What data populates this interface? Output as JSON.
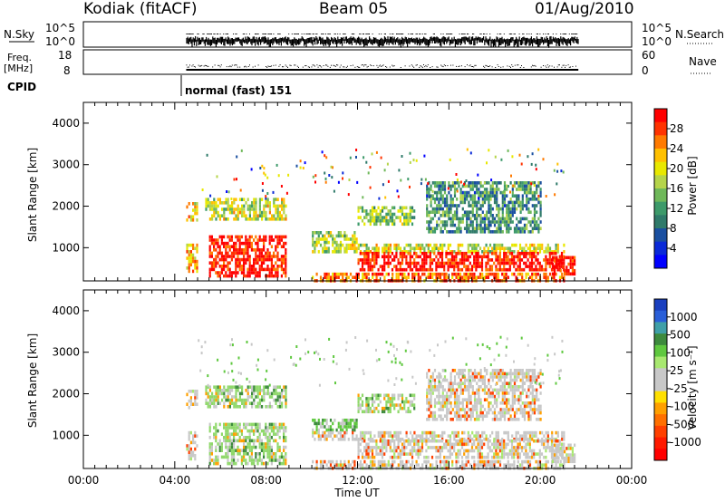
{
  "header": {
    "station": "Kodiak (fitACF)",
    "beam": "Beam 05",
    "date": "01/Aug/2010"
  },
  "panels": {
    "nsky": {
      "label": "N.Sky",
      "ticks": [
        "10^5",
        "10^0"
      ],
      "right_label": "N.Search",
      "right_ticks": [
        "10^5",
        "10^0"
      ]
    },
    "freq": {
      "label_line1": "Freq.",
      "label_line2": "[MHz]",
      "ticks": [
        "18",
        "8"
      ],
      "right_label": "Nave",
      "right_ticks": [
        "60",
        "0"
      ]
    },
    "cpid": {
      "label": "CPID",
      "mode": "normal (fast) 151"
    }
  },
  "x_axis": {
    "label": "Time UT",
    "ticks": [
      "00:00",
      "04:00",
      "08:00",
      "12:00",
      "16:00",
      "20:00",
      "00:00"
    ]
  },
  "power_colorbar": {
    "label": "Power [dB]",
    "ticks": [
      "28",
      "24",
      "20",
      "16",
      "12",
      "8",
      "4"
    ],
    "colors": [
      "#ff0000",
      "#ff3300",
      "#ff7a00",
      "#ffc000",
      "#e8e800",
      "#b5d44a",
      "#6fb85a",
      "#3d9a6a",
      "#2f7a6a",
      "#1a4fa0",
      "#0a2ad8",
      "#0000ff"
    ]
  },
  "velocity_colorbar": {
    "label": "Velocity [m s⁻¹]",
    "ticks": [
      "1000",
      "500",
      "100",
      "25",
      "-25",
      "-100",
      "-500",
      "-1000"
    ],
    "colors": [
      "#1a3fbf",
      "#2a5fd8",
      "#3f9fa8",
      "#3d8a3d",
      "#5fc83f",
      "#a8e870",
      "#c8c8c8",
      "#c8c8c8",
      "#ffe000",
      "#ffa000",
      "#ff7000",
      "#ff4000",
      "#ff1a00",
      "#ff0000"
    ]
  },
  "chart_data": [
    {
      "type": "heatmap",
      "title": "",
      "xlabel": "",
      "ylabel": "Slant Range [km]",
      "xlim": [
        "00:00",
        "00:00"
      ],
      "ylim": [
        200,
        4500
      ],
      "yticks": [
        "4000",
        "3000",
        "2000",
        "1000"
      ],
      "colorbar": "Power [dB]",
      "data_coverage": [
        "04:30",
        "21:40"
      ],
      "echo_regions": [
        {
          "t_start": "04:30",
          "t_end": "05:00",
          "r_low": 1700,
          "r_high": 2100,
          "value": 20
        },
        {
          "t_start": "04:30",
          "t_end": "05:00",
          "r_low": 450,
          "r_high": 1100,
          "value": 22
        },
        {
          "t_start": "05:20",
          "t_end": "08:50",
          "r_low": 1700,
          "r_high": 2200,
          "value": 18
        },
        {
          "t_start": "05:30",
          "t_end": "08:50",
          "r_low": 350,
          "r_high": 1300,
          "value": 28
        },
        {
          "t_start": "10:00",
          "t_end": "12:00",
          "r_low": 1100,
          "r_high": 1400,
          "value": 16
        },
        {
          "t_start": "10:00",
          "t_end": "21:00",
          "r_low": 900,
          "r_high": 1100,
          "value": 18
        },
        {
          "t_start": "12:00",
          "t_end": "21:00",
          "r_low": 450,
          "r_high": 900,
          "value": 28
        },
        {
          "t_start": "10:00",
          "t_end": "21:00",
          "r_low": 200,
          "r_high": 400,
          "value": 24
        },
        {
          "t_start": "12:00",
          "t_end": "14:30",
          "r_low": 1600,
          "r_high": 2000,
          "value": 16
        },
        {
          "t_start": "15:00",
          "t_end": "20:00",
          "r_low": 1400,
          "r_high": 2600,
          "value": 12
        },
        {
          "t_start": "20:30",
          "t_end": "21:30",
          "r_low": 350,
          "r_high": 800,
          "value": 28
        }
      ]
    },
    {
      "type": "heatmap",
      "title": "",
      "xlabel": "Time UT",
      "ylabel": "Slant Range [km]",
      "xlim": [
        "00:00",
        "00:00"
      ],
      "ylim": [
        200,
        4500
      ],
      "yticks": [
        "4000",
        "3000",
        "2000",
        "1000"
      ],
      "colorbar": "Velocity [m s⁻¹]",
      "data_coverage": [
        "04:30",
        "21:40"
      ],
      "echo_regions": [
        {
          "t_start": "04:30",
          "t_end": "05:00",
          "r_low": 1700,
          "r_high": 2100,
          "value": 0
        },
        {
          "t_start": "04:30",
          "t_end": "05:00",
          "r_low": 450,
          "r_high": 1100,
          "value": 0
        },
        {
          "t_start": "05:20",
          "t_end": "08:50",
          "r_low": 1700,
          "r_high": 2200,
          "value": 100
        },
        {
          "t_start": "05:30",
          "t_end": "08:50",
          "r_low": 350,
          "r_high": 1300,
          "value": 100
        },
        {
          "t_start": "10:00",
          "t_end": "12:00",
          "r_low": 1100,
          "r_high": 1400,
          "value": 50
        },
        {
          "t_start": "10:00",
          "t_end": "21:00",
          "r_low": 900,
          "r_high": 1100,
          "value": 0
        },
        {
          "t_start": "12:00",
          "t_end": "21:00",
          "r_low": 450,
          "r_high": 900,
          "value": 0
        },
        {
          "t_start": "10:00",
          "t_end": "21:00",
          "r_low": 200,
          "r_high": 400,
          "value": 0
        },
        {
          "t_start": "12:00",
          "t_end": "14:30",
          "r_low": 1600,
          "r_high": 2000,
          "value": 100
        },
        {
          "t_start": "15:00",
          "t_end": "20:00",
          "r_low": 1400,
          "r_high": 2600,
          "value": 0
        },
        {
          "t_start": "20:30",
          "t_end": "21:30",
          "r_low": 350,
          "r_high": 800,
          "value": 0
        }
      ]
    }
  ]
}
